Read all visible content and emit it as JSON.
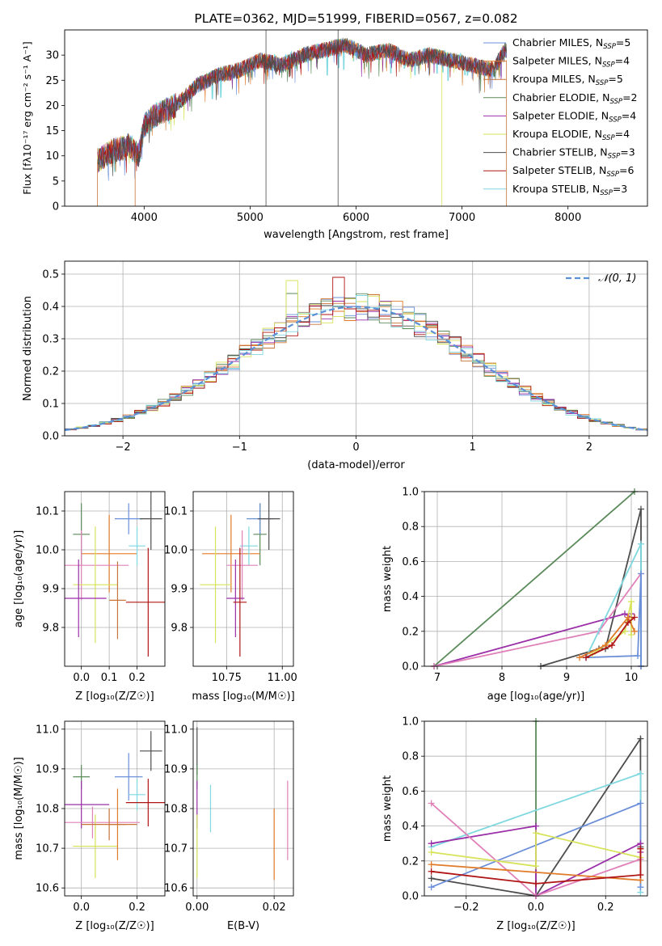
{
  "colors": {
    "Chabrier MILES": "#6b8fd9",
    "Salpeter MILES": "#e07b2a",
    "Kroupa MILES": "#c8743a",
    "Chabrier ELODIE": "#5a8a5a",
    "Salpeter ELODIE": "#9b2fa8",
    "Kroupa ELODIE": "#d7e35a",
    "Chabrier STELIB": "#4d4d4d",
    "Salpeter STELIB": "#b01515",
    "Kroupa STELIB": "#7fd8e0",
    "Chabrier ELODIE pink": "#e080b8"
  },
  "chart_data": [
    {
      "type": "line",
      "title": "PLATE=0362, MJD=51999, FIBERID=0567, z=0.082",
      "xlabel": "wavelength [Angstrom, rest frame]",
      "ylabel": "Flux [fλ10⁻¹⁷ erg cm⁻² s⁻¹ A⁻¹]",
      "xlim": [
        3250,
        8750
      ],
      "ylim": [
        0,
        35
      ],
      "xticks": [
        "4000",
        "5000",
        "6000",
        "7000",
        "8000"
      ],
      "yticks": [
        "0",
        "5",
        "10",
        "15",
        "20",
        "25",
        "30"
      ],
      "legend_position": "right",
      "legend": [
        {
          "label": "Chabrier MILES, N",
          "sub": "SSP",
          "eq": "=5"
        },
        {
          "label": "Salpeter MILES, N",
          "sub": "SSP",
          "eq": "=4"
        },
        {
          "label": "Kroupa MILES, N",
          "sub": "SSP",
          "eq": "=5"
        },
        {
          "label": "Chabrier ELODIE, N",
          "sub": "SSP",
          "eq": "=2"
        },
        {
          "label": "Salpeter ELODIE, N",
          "sub": "SSP",
          "eq": "=4"
        },
        {
          "label": "Kroupa ELODIE, N",
          "sub": "SSP",
          "eq": "=4"
        },
        {
          "label": "Chabrier STELIB, N",
          "sub": "SSP",
          "eq": "=3"
        },
        {
          "label": "Salpeter STELIB, N",
          "sub": "SSP",
          "eq": "=6"
        },
        {
          "label": "Kroupa STELIB, N",
          "sub": "SSP",
          "eq": "=3"
        }
      ],
      "spectrum_anchors": {
        "x": [
          3560,
          3700,
          3850,
          3950,
          4000,
          4100,
          4300,
          4500,
          4700,
          4900,
          5100,
          5300,
          5500,
          5700,
          5900,
          6100,
          6300,
          6500,
          6700,
          6900,
          7100,
          7300,
          7400
        ],
        "y": [
          9,
          11,
          12,
          10,
          16,
          18,
          20,
          24,
          26,
          27,
          29,
          28,
          30,
          31,
          32,
          30,
          31,
          29,
          30,
          29,
          28,
          27,
          31
        ]
      },
      "spikes": [
        {
          "x": 5150,
          "y": 38
        },
        {
          "x": 5830,
          "y": 38
        },
        {
          "x": 6810,
          "y": 28
        }
      ]
    },
    {
      "type": "bar",
      "subtype": "step-histogram",
      "xlabel": "(data-model)/error",
      "ylabel": "Normed distribution",
      "xlim": [
        -2.5,
        2.5
      ],
      "ylim": [
        0,
        0.54
      ],
      "xticks": [
        "−2",
        "−1",
        "0",
        "1",
        "2"
      ],
      "yticks": [
        "0.0",
        "0.1",
        "0.2",
        "0.3",
        "0.4",
        "0.5"
      ],
      "legend": "𝒩(0, 1)",
      "legend_position": "top-right",
      "bin_width": 0.1,
      "bin_start": -2.5,
      "curve": "normal pdf mean 0 sigma 1",
      "special_bins": [
        {
          "x0": -0.6,
          "y": 0.48,
          "series": "Kroupa ELODIE"
        },
        {
          "x0": -0.2,
          "y": 0.49,
          "series": "Salpeter STELIB"
        },
        {
          "x0": -0.6,
          "y": 0.44,
          "series": "Chabrier ELODIE"
        }
      ]
    },
    {
      "type": "scatter",
      "subtype": "errorbar",
      "xlabel": "Z [log₁₀(Z/Z☉)]",
      "ylabel": "age  [log₁₀(age/yr)]",
      "xlim": [
        -0.06,
        0.3
      ],
      "ylim": [
        9.7,
        10.15
      ],
      "xticks": [
        "0.0",
        "0.1",
        "0.2"
      ],
      "yticks": [
        "9.8",
        "9.9",
        "10.0",
        "10.1"
      ],
      "points": [
        {
          "series": "Chabrier ELODIE",
          "x": 0.0,
          "y": 10.04,
          "xerr": 0.03,
          "yerr": 0.08
        },
        {
          "series": "Salpeter MILES",
          "x": 0.1,
          "y": 9.99,
          "xerr": 0.1,
          "yerr": 0.1
        },
        {
          "series": "Chabrier MILES",
          "x": 0.17,
          "y": 10.08,
          "xerr": 0.05,
          "yerr": 0.04
        },
        {
          "series": "Chabrier STELIB",
          "x": 0.25,
          "y": 10.08,
          "xerr": 0.04,
          "yerr": 0.08
        },
        {
          "series": "Kroupa STELIB",
          "x": 0.2,
          "y": 10.01,
          "xerr": 0.03,
          "yerr": 0.05
        },
        {
          "series": "Chabrier ELODIE pink",
          "x": 0.0,
          "y": 9.96,
          "xerr": 0.17,
          "yerr": 0.09
        },
        {
          "series": "Kroupa ELODIE",
          "x": 0.05,
          "y": 9.91,
          "xerr": 0.08,
          "yerr": 0.15
        },
        {
          "series": "Salpeter ELODIE",
          "x": -0.01,
          "y": 9.875,
          "xerr": 0.1,
          "yerr": 0.1
        },
        {
          "series": "Salpeter STELIB",
          "x": 0.24,
          "y": 9.865,
          "xerr": 0.08,
          "yerr": 0.14
        },
        {
          "series": "Kroupa MILES",
          "x": 0.13,
          "y": 9.87,
          "xerr": 0.03,
          "yerr": 0.1
        }
      ]
    },
    {
      "type": "scatter",
      "subtype": "errorbar",
      "xlabel": "mass [log₁₀(M/M☉)]",
      "ylabel": "",
      "xlim": [
        10.6,
        11.05
      ],
      "ylim": [
        9.7,
        10.15
      ],
      "xticks": [
        "10.75",
        "11.00"
      ],
      "yticks": [
        "9.8",
        "9.9",
        "10.0",
        "10.1"
      ],
      "points": [
        {
          "series": "Chabrier ELODIE",
          "x": 10.9,
          "y": 10.04,
          "xerr": 0.03,
          "yerr": 0.08
        },
        {
          "series": "Salpeter MILES",
          "x": 10.77,
          "y": 9.99,
          "xerr": 0.13,
          "yerr": 0.1
        },
        {
          "series": "Chabrier MILES",
          "x": 10.9,
          "y": 10.08,
          "xerr": 0.06,
          "yerr": 0.04
        },
        {
          "series": "Chabrier STELIB",
          "x": 10.94,
          "y": 10.08,
          "xerr": 0.05,
          "yerr": 0.08
        },
        {
          "series": "Kroupa STELIB",
          "x": 10.85,
          "y": 10.01,
          "xerr": 0.04,
          "yerr": 0.05
        },
        {
          "series": "Chabrier ELODIE pink",
          "x": 10.82,
          "y": 9.96,
          "xerr": 0.07,
          "yerr": 0.09
        },
        {
          "series": "Kroupa ELODIE",
          "x": 10.7,
          "y": 9.91,
          "xerr": 0.07,
          "yerr": 0.15
        },
        {
          "series": "Salpeter ELODIE",
          "x": 10.79,
          "y": 9.875,
          "xerr": 0.04,
          "yerr": 0.1
        },
        {
          "series": "Salpeter STELIB",
          "x": 10.81,
          "y": 9.865,
          "xerr": 0.03,
          "yerr": 0.14
        }
      ]
    },
    {
      "type": "line",
      "xlabel": "age  [log₁₀(age/yr)]",
      "ylabel": "mass weight",
      "xlim": [
        6.8,
        10.25
      ],
      "ylim": [
        0,
        1.0
      ],
      "xticks": [
        "7",
        "8",
        "9",
        "10"
      ],
      "yticks": [
        "0.0",
        "0.2",
        "0.4",
        "0.6",
        "0.8",
        "1.0"
      ],
      "series": [
        {
          "name": "Chabrier ELODIE",
          "x": [
            6.95,
            10.05
          ],
          "y": [
            0.0,
            1.0
          ]
        },
        {
          "name": "Chabrier STELIB",
          "x": [
            8.6,
            9.5,
            9.6,
            10.15,
            10.15
          ],
          "y": [
            0.0,
            0.1,
            0.1,
            0.9,
            0.0
          ]
        },
        {
          "name": "Salpeter ELODIE",
          "x": [
            6.95,
            9.9,
            10.0,
            10.0
          ],
          "y": [
            0.0,
            0.3,
            0.28,
            0.3
          ]
        },
        {
          "name": "Chabrier ELODIE pink",
          "x": [
            6.95,
            9.5,
            10.15,
            10.15
          ],
          "y": [
            0.0,
            0.2,
            0.53,
            0.0
          ]
        },
        {
          "name": "Kroupa STELIB",
          "x": [
            9.3,
            10.15,
            10.15
          ],
          "y": [
            0.05,
            0.7,
            0.0
          ]
        },
        {
          "name": "Chabrier MILES",
          "x": [
            9.3,
            10.1,
            10.15,
            10.15
          ],
          "y": [
            0.05,
            0.06,
            0.53,
            0.0
          ]
        },
        {
          "name": "Kroupa ELODIE",
          "x": [
            9.4,
            9.9,
            10.0,
            10.0
          ],
          "y": [
            0.07,
            0.2,
            0.37,
            0.18
          ]
        },
        {
          "name": "Salpeter MILES",
          "x": [
            9.2,
            9.6,
            9.95,
            10.05
          ],
          "y": [
            0.05,
            0.12,
            0.28,
            0.2
          ]
        },
        {
          "name": "Salpeter STELIB",
          "x": [
            9.3,
            9.7,
            9.95,
            10.05
          ],
          "y": [
            0.05,
            0.12,
            0.25,
            0.28
          ]
        }
      ]
    },
    {
      "type": "scatter",
      "subtype": "errorbar",
      "xlabel": "Z [log₁₀(Z/Z☉)]",
      "ylabel": "mass [log₁₀(M/M☉)]",
      "xlim": [
        -0.06,
        0.3
      ],
      "ylim": [
        10.58,
        11.02
      ],
      "xticks": [
        "0.0",
        "0.2"
      ],
      "yticks": [
        "10.6",
        "10.7",
        "10.8",
        "10.9",
        "11.0"
      ],
      "points": [
        {
          "series": "Chabrier ELODIE",
          "x": 0.0,
          "y": 10.88,
          "xerr": 0.03,
          "yerr": 0.03
        },
        {
          "series": "Chabrier MILES",
          "x": 0.17,
          "y": 10.88,
          "xerr": 0.05,
          "yerr": 0.06
        },
        {
          "series": "Chabrier STELIB",
          "x": 0.25,
          "y": 10.945,
          "xerr": 0.04,
          "yerr": 0.05
        },
        {
          "series": "Kroupa STELIB",
          "x": 0.2,
          "y": 10.835,
          "xerr": 0.03,
          "yerr": 0.04
        },
        {
          "series": "Salpeter ELODIE",
          "x": 0.0,
          "y": 10.81,
          "xerr": 0.1,
          "yerr": 0.06
        },
        {
          "series": "Salpeter STELIB",
          "x": 0.24,
          "y": 10.815,
          "xerr": 0.08,
          "yerr": 0.06
        },
        {
          "series": "Chabrier ELODIE pink",
          "x": 0.04,
          "y": 10.765,
          "xerr": 0.17,
          "yerr": 0.04
        },
        {
          "series": "Kroupa ELODIE",
          "x": 0.05,
          "y": 10.705,
          "xerr": 0.08,
          "yerr": 0.08
        },
        {
          "series": "Salpeter MILES",
          "x": 0.13,
          "y": 10.76,
          "xerr": 0.03,
          "yerr": 0.09
        },
        {
          "series": "Kroupa MILES",
          "x": 0.1,
          "y": 10.76,
          "xerr": 0.1,
          "yerr": 0.04
        }
      ]
    },
    {
      "type": "scatter",
      "subtype": "errorbar",
      "xlabel": "E(B-V)",
      "ylabel": "",
      "xlim": [
        -0.001,
        0.025
      ],
      "ylim": [
        10.58,
        11.02
      ],
      "xticks": [
        "0.00",
        "0.02"
      ],
      "yticks": [
        "10.6",
        "10.7",
        "10.8",
        "10.9",
        "11.0"
      ],
      "points": [
        {
          "series": "Chabrier STELIB",
          "x": 0.0,
          "y": 10.945,
          "xerr": 0,
          "yerr": 0.06
        },
        {
          "series": "Chabrier ELODIE",
          "x": 0.0,
          "y": 10.88,
          "xerr": 0,
          "yerr": 0.03
        },
        {
          "series": "Salpeter ELODIE",
          "x": 0.0,
          "y": 10.81,
          "xerr": 0,
          "yerr": 0.06
        },
        {
          "series": "Kroupa ELODIE",
          "x": 0.0,
          "y": 10.705,
          "xerr": 0,
          "yerr": 0.08
        },
        {
          "series": "Kroupa STELIB",
          "x": 0.0035,
          "y": 10.8,
          "xerr": 0,
          "yerr": 0.06
        },
        {
          "series": "Salpeter MILES",
          "x": 0.02,
          "y": 10.71,
          "xerr": 0,
          "yerr": 0.09
        },
        {
          "series": "Chabrier ELODIE pink",
          "x": 0.0235,
          "y": 10.77,
          "xerr": 0,
          "yerr": 0.1
        }
      ]
    },
    {
      "type": "line",
      "xlabel": "Z [log₁₀(Z/Z☉)]",
      "ylabel": "mass weight",
      "xlim": [
        -0.32,
        0.32
      ],
      "ylim": [
        0,
        1.0
      ],
      "xticks": [
        "−0.2",
        "0.0",
        "0.2"
      ],
      "yticks": [
        "0.0",
        "0.2",
        "0.4",
        "0.6",
        "0.8",
        "1.0"
      ],
      "series": [
        {
          "name": "Chabrier ELODIE",
          "x": [
            0.0,
            0.0
          ],
          "y": [
            0.0,
            1.0
          ]
        },
        {
          "name": "Chabrier STELIB",
          "x": [
            -0.3,
            0.0,
            0.3,
            0.3
          ],
          "y": [
            0.1,
            0.0,
            0.9,
            0.28
          ]
        },
        {
          "name": "Kroupa STELIB",
          "x": [
            -0.3,
            0.3,
            0.3
          ],
          "y": [
            0.28,
            0.7,
            0.02
          ]
        },
        {
          "name": "Chabrier MILES",
          "x": [
            -0.3,
            0.3,
            0.3
          ],
          "y": [
            0.05,
            0.53,
            0.05
          ]
        },
        {
          "name": "Salpeter ELODIE",
          "x": [
            -0.3,
            0.0,
            0.0,
            0.3,
            0.3
          ],
          "y": [
            0.3,
            0.4,
            0.0,
            0.3,
            0.25
          ]
        },
        {
          "name": "Chabrier ELODIE pink",
          "x": [
            -0.3,
            0.0,
            0.3
          ],
          "y": [
            0.53,
            0.0,
            0.21
          ]
        },
        {
          "name": "Kroupa ELODIE",
          "x": [
            -0.3,
            0.0,
            0.0,
            0.3
          ],
          "y": [
            0.25,
            0.17,
            0.36,
            0.22
          ]
        },
        {
          "name": "Salpeter MILES",
          "x": [
            -0.3,
            0.3,
            0.3
          ],
          "y": [
            0.18,
            0.09,
            0.27
          ]
        },
        {
          "name": "Salpeter STELIB",
          "x": [
            -0.3,
            0.0,
            0.3,
            0.3
          ],
          "y": [
            0.14,
            0.07,
            0.12,
            0.27
          ]
        }
      ]
    }
  ]
}
